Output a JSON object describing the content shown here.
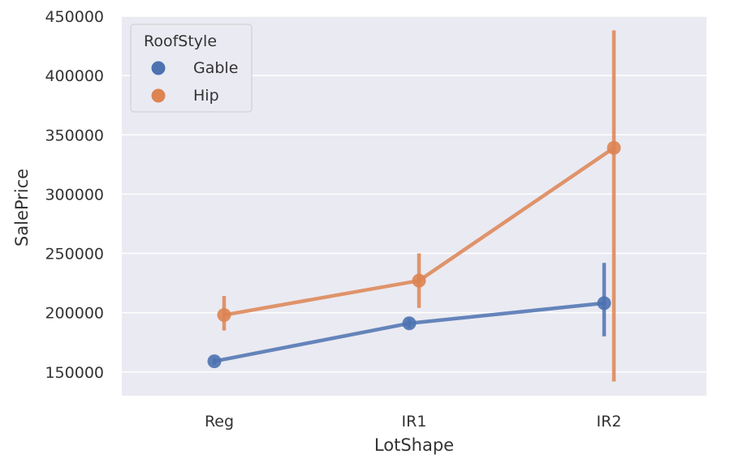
{
  "chart_data": {
    "type": "line",
    "xlabel": "LotShape",
    "ylabel": "SalePrice",
    "categories": [
      "Reg",
      "IR1",
      "IR2"
    ],
    "ylim": [
      130000,
      450000
    ],
    "yticks": [
      150000,
      200000,
      250000,
      300000,
      350000,
      400000,
      450000
    ],
    "grid": true,
    "legend": {
      "title": "RoofStyle",
      "placement": "top-left"
    },
    "series": [
      {
        "name": "Gable",
        "color": "#4c72b0",
        "values": [
          159000,
          191000,
          208000
        ],
        "ci_low": [
          156000,
          187000,
          180000
        ],
        "ci_high": [
          162000,
          195000,
          242000
        ]
      },
      {
        "name": "Hip",
        "color": "#dd8452",
        "values": [
          198000,
          227000,
          339000
        ],
        "ci_low": [
          185000,
          204000,
          142000
        ],
        "ci_high": [
          214000,
          250000,
          438000
        ]
      }
    ]
  }
}
